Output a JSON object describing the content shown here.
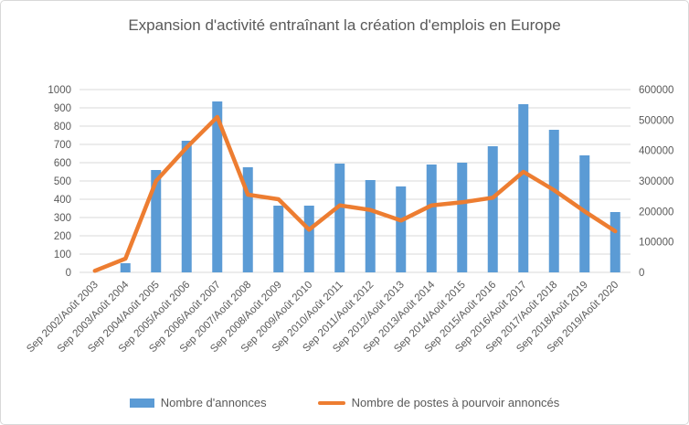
{
  "chart_data": {
    "type": "bar",
    "subtype": "combo-bar-line",
    "title": "Expansion d'activité entraînant la création d'emplois en Europe",
    "categories": [
      "Sep 2002/Août 2003",
      "Sep 2003/Août 2004",
      "Sep 2004/Août 2005",
      "Sep 2005/Août 2006",
      "Sep 2006/Août 2007",
      "Sep 2007/Août 2008",
      "Sep 2008/Août 2009",
      "Sep 2009/Août 2010",
      "Sep 2010/Août 2011",
      "Sep 2011/Août 2012",
      "Sep 2012/Août 2013",
      "Sep 2013/Août 2014",
      "Sep 2014/Août 2015",
      "Sep 2015/Août 2016",
      "Sep 2016/Août 2017",
      "Sep 2017/Août 2018",
      "Sep 2018/Août 2019",
      "Sep 2019/Août 2020"
    ],
    "series": [
      {
        "name": "Nombre d'annonces",
        "type": "bar",
        "axis": "left",
        "color": "#5B9BD5",
        "values": [
          0,
          50,
          560,
          720,
          935,
          575,
          365,
          365,
          595,
          505,
          470,
          590,
          600,
          690,
          920,
          780,
          640,
          330
        ]
      },
      {
        "name": "Nombre de postes à pourvoir annoncés",
        "type": "line",
        "axis": "right",
        "color": "#ED7D31",
        "values": [
          5000,
          45000,
          300000,
          410000,
          510000,
          255000,
          240000,
          140000,
          220000,
          205000,
          170000,
          220000,
          230000,
          245000,
          330000,
          270000,
          200000,
          135000
        ]
      }
    ],
    "left_axis": {
      "min": 0,
      "max": 1000,
      "step": 100
    },
    "right_axis": {
      "min": 0,
      "max": 600000,
      "step": 100000
    },
    "grid": true,
    "grid_color": "#d9d9d9",
    "text_color": "#595959",
    "legend_position": "bottom"
  }
}
